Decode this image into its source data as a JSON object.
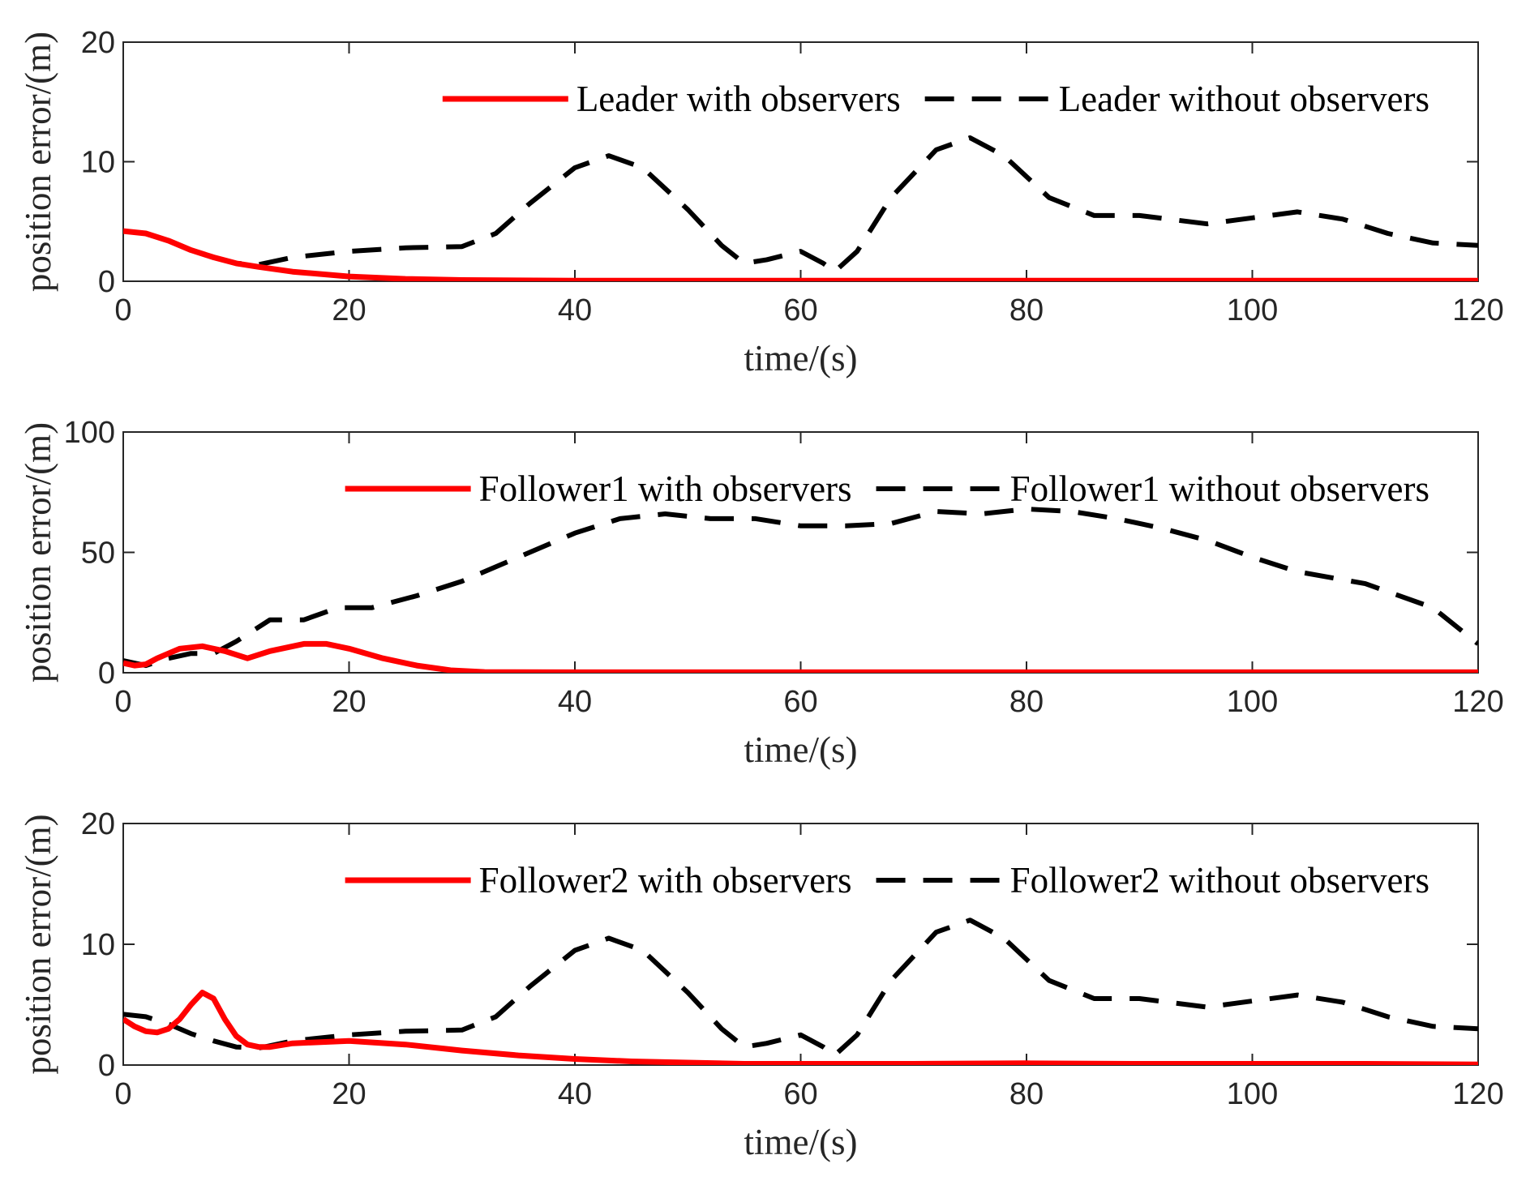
{
  "chart_data": [
    {
      "type": "line",
      "xlabel": "time/(s)",
      "ylabel": "position error/(m)",
      "xlim": [
        0,
        120
      ],
      "ylim": [
        0,
        20
      ],
      "xticks": [
        0,
        20,
        40,
        60,
        80,
        100,
        120
      ],
      "yticks": [
        0,
        10,
        20
      ],
      "legend_position": "top-right",
      "series": [
        {
          "name": "Leader with observers",
          "color": "#ff0000",
          "style": "solid",
          "x": [
            0,
            2,
            4,
            6,
            8,
            10,
            12,
            15,
            20,
            25,
            30,
            40,
            50,
            60,
            70,
            80,
            90,
            100,
            110,
            120
          ],
          "y": [
            4.2,
            4.0,
            3.4,
            2.6,
            2.0,
            1.5,
            1.2,
            0.8,
            0.4,
            0.2,
            0.1,
            0.05,
            0.05,
            0.05,
            0.05,
            0.05,
            0.05,
            0.05,
            0.05,
            0.05
          ]
        },
        {
          "name": "Leader without observers",
          "color": "#000000",
          "style": "dashed",
          "x": [
            0,
            2,
            4,
            6,
            8,
            10,
            12,
            15,
            20,
            25,
            30,
            33,
            36,
            40,
            43,
            46,
            50,
            53,
            55,
            57,
            60,
            62,
            63,
            65,
            68,
            72,
            75,
            78,
            82,
            86,
            90,
            96,
            100,
            104,
            108,
            112,
            116,
            120
          ],
          "y": [
            4.2,
            4.0,
            3.4,
            2.6,
            2.0,
            1.5,
            1.4,
            2.0,
            2.5,
            2.8,
            2.9,
            4.0,
            6.5,
            9.5,
            10.5,
            9.5,
            6.0,
            3.0,
            1.5,
            1.8,
            2.5,
            1.5,
            0.8,
            2.5,
            7.0,
            11.0,
            12.0,
            10.5,
            7.0,
            5.5,
            5.5,
            4.8,
            5.3,
            5.8,
            5.2,
            4.0,
            3.2,
            3.0
          ]
        }
      ]
    },
    {
      "type": "line",
      "xlabel": "time/(s)",
      "ylabel": "position error/(m)",
      "xlim": [
        0,
        120
      ],
      "ylim": [
        0,
        100
      ],
      "xticks": [
        0,
        20,
        40,
        60,
        80,
        100,
        120
      ],
      "yticks": [
        0,
        50,
        100
      ],
      "legend_position": "top-right",
      "series": [
        {
          "name": "Follower1 with observers",
          "color": "#ff0000",
          "style": "solid",
          "x": [
            0,
            1,
            2,
            3,
            5,
            7,
            9,
            11,
            13,
            16,
            18,
            20,
            23,
            26,
            29,
            32,
            40,
            50,
            60,
            70,
            80,
            90,
            100,
            110,
            120
          ],
          "y": [
            4,
            3,
            3.5,
            6,
            10,
            11,
            9,
            6,
            9,
            12,
            12,
            10,
            6,
            3,
            1,
            0.3,
            0.2,
            0.2,
            0.2,
            0.2,
            0.2,
            0.2,
            0.2,
            0.2,
            0.2
          ],
          "dash": ""
        },
        {
          "name": "Follower1 without observers",
          "color": "#000000",
          "style": "dashed",
          "x": [
            0,
            2,
            4,
            6,
            8,
            10,
            13,
            16,
            19,
            22,
            26,
            30,
            35,
            40,
            44,
            48,
            52,
            56,
            60,
            64,
            68,
            72,
            76,
            80,
            84,
            88,
            92,
            96,
            100,
            104,
            110,
            116,
            120
          ],
          "y": [
            5,
            3,
            6,
            8,
            8,
            13,
            22,
            22,
            27,
            27,
            32,
            38,
            48,
            58,
            64,
            66,
            64,
            64,
            61,
            61,
            62,
            67,
            66,
            68,
            67,
            64,
            60,
            55,
            48,
            42,
            37,
            27,
            12
          ]
        }
      ]
    },
    {
      "type": "line",
      "xlabel": "time/(s)",
      "ylabel": "position error/(m)",
      "xlim": [
        0,
        120
      ],
      "ylim": [
        0,
        20
      ],
      "xticks": [
        0,
        20,
        40,
        60,
        80,
        100,
        120
      ],
      "yticks": [
        0,
        10,
        20
      ],
      "legend_position": "top-right",
      "series": [
        {
          "name": "Follower2 with observers",
          "color": "#ff0000",
          "style": "solid",
          "x": [
            0,
            1,
            2,
            3,
            4,
            5,
            6,
            7,
            8,
            9,
            10,
            11,
            12,
            13,
            15,
            20,
            25,
            30,
            35,
            40,
            45,
            50,
            55,
            60,
            70,
            80,
            90,
            100,
            110,
            120
          ],
          "y": [
            3.8,
            3.2,
            2.8,
            2.7,
            3.0,
            3.8,
            5.0,
            6.0,
            5.5,
            3.8,
            2.4,
            1.7,
            1.5,
            1.5,
            1.8,
            2.0,
            1.7,
            1.2,
            0.8,
            0.5,
            0.3,
            0.2,
            0.1,
            0.1,
            0.1,
            0.15,
            0.1,
            0.1,
            0.1,
            0.05
          ]
        },
        {
          "name": "Follower2 without observers",
          "color": "#000000",
          "style": "dashed",
          "x": [
            0,
            2,
            4,
            6,
            8,
            10,
            12,
            15,
            20,
            25,
            30,
            33,
            36,
            40,
            43,
            46,
            50,
            53,
            55,
            57,
            60,
            62,
            63,
            65,
            68,
            72,
            75,
            78,
            82,
            86,
            90,
            96,
            100,
            104,
            108,
            112,
            116,
            120
          ],
          "y": [
            4.2,
            4.0,
            3.4,
            2.6,
            2.0,
            1.5,
            1.4,
            2.0,
            2.5,
            2.8,
            2.9,
            4.0,
            6.5,
            9.5,
            10.5,
            9.5,
            6.0,
            3.0,
            1.5,
            1.8,
            2.5,
            1.5,
            0.8,
            2.5,
            7.0,
            11.0,
            12.0,
            10.5,
            7.0,
            5.5,
            5.5,
            4.8,
            5.3,
            5.8,
            5.2,
            4.0,
            3.2,
            3.0
          ]
        }
      ]
    }
  ]
}
